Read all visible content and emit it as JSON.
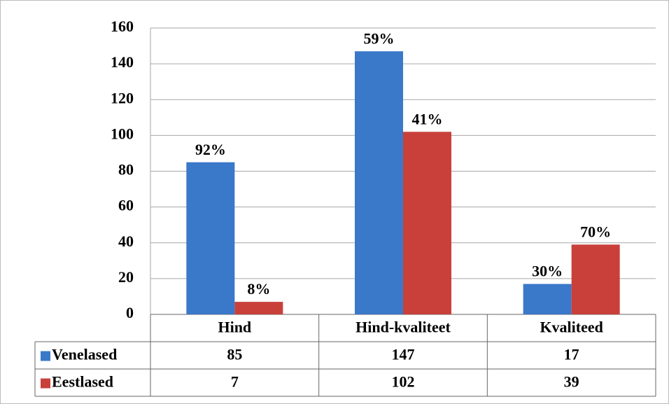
{
  "chart_data": {
    "type": "bar",
    "categories": [
      "Hind",
      "Hind-kvaliteet",
      "Kvaliteed"
    ],
    "series": [
      {
        "name": "Venelased",
        "color": "#3a78c9",
        "values": [
          85,
          147,
          17
        ],
        "percent_labels": [
          "92%",
          "59%",
          "30%"
        ]
      },
      {
        "name": "Eestlased",
        "color": "#c9403b",
        "values": [
          7,
          102,
          39
        ],
        "percent_labels": [
          "8%",
          "41%",
          "70%"
        ]
      }
    ],
    "ylim": [
      0,
      160
    ],
    "yticks": [
      0,
      20,
      40,
      60,
      80,
      100,
      120,
      140,
      160
    ],
    "grid": true
  }
}
